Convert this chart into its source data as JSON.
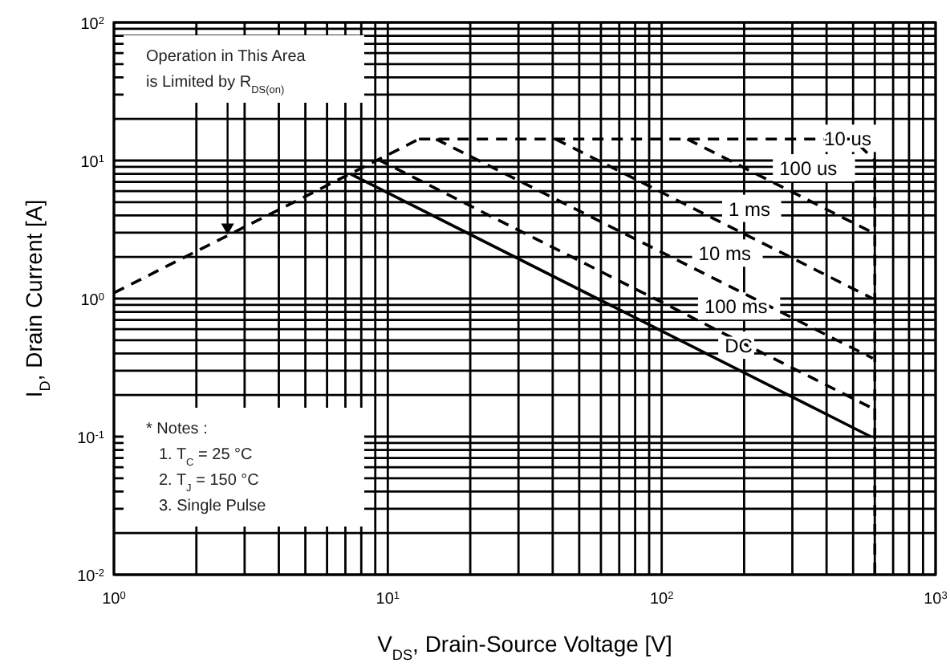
{
  "chart_data": {
    "type": "line",
    "xlabel": "V$_{DS}$, Drain-Source Voltage [V]",
    "ylabel": "I$_{D}$, Drain Current [A]",
    "log": "xy",
    "grid": true,
    "xlim": [
      1,
      1000
    ],
    "ylim": [
      0.01,
      100
    ],
    "xticks": [
      {
        "value": 1,
        "label": "10$^{0}$"
      },
      {
        "value": 10,
        "label": "10$^{1}$"
      },
      {
        "value": 100,
        "label": "10$^{2}$"
      },
      {
        "value": 1000,
        "label": "10$^{3}$"
      }
    ],
    "yticks": [
      {
        "value": 0.01,
        "label": "10$^{-2}$"
      },
      {
        "value": 0.1,
        "label": "10$^{-1}$"
      },
      {
        "value": 1,
        "label": "10$^{0}$"
      },
      {
        "value": 10,
        "label": "10$^{1}$"
      },
      {
        "value": 100,
        "label": "10$^{2}$"
      }
    ],
    "series": [
      {
        "color": "#000000",
        "line_style": "dashed",
        "x": [
          1,
          13
        ],
        "values": [
          1.1,
          14.3
        ]
      },
      {
        "name": "10 us",
        "color": "#000000",
        "line_style": "dashed",
        "x": [
          13,
          500,
          600,
          600
        ],
        "values": [
          14.3,
          14.3,
          10,
          0.01
        ]
      },
      {
        "name": "100 us",
        "color": "#000000",
        "line_style": "dashed",
        "x": [
          124,
          590
        ],
        "values": [
          14.3,
          3
        ]
      },
      {
        "name": "1 ms",
        "color": "#000000",
        "line_style": "dashed",
        "x": [
          41,
          590
        ],
        "values": [
          14.3,
          1
        ]
      },
      {
        "name": "10 ms",
        "color": "#000000",
        "line_style": "dashed",
        "x": [
          15,
          590
        ],
        "values": [
          14.3,
          0.37
        ]
      },
      {
        "name": "100 ms",
        "color": "#000000",
        "line_style": "dashed",
        "x": [
          9.2,
          590
        ],
        "values": [
          10.2,
          0.16
        ]
      },
      {
        "name": "DC",
        "color": "#000000",
        "line_style": "solid",
        "x": [
          7.3,
          580
        ],
        "values": [
          8,
          0.1
        ]
      }
    ],
    "annotations": [
      {
        "text": "Operation in This Area\nis Limited by R$_{DS(on)}$",
        "x": 2.6,
        "y": 2.9
      },
      "* Notes :\n1. T$_{C}$ = 25 °C\n2. T$_{J}$ = 150 °C\n3. Single Pulse"
    ]
  }
}
